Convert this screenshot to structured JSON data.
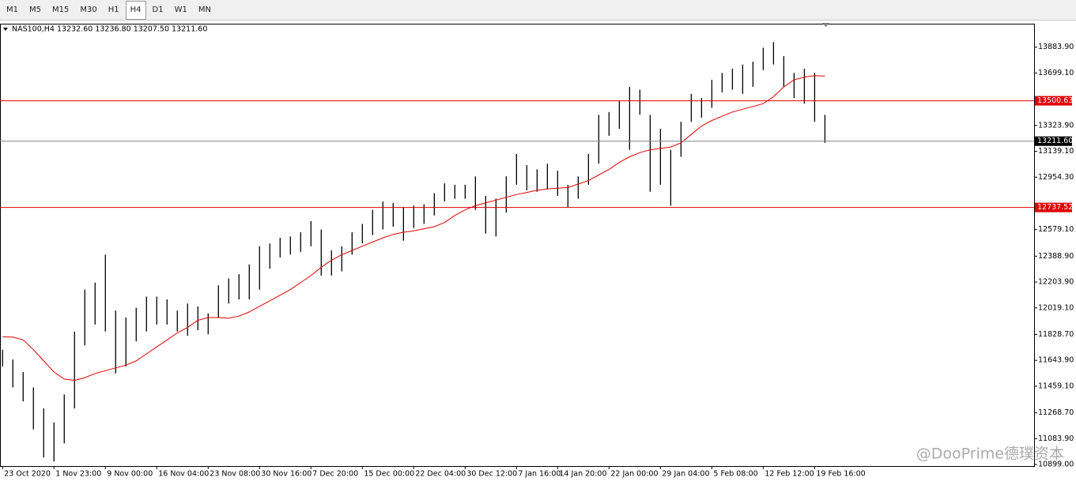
{
  "toolbar": {
    "timeframes": [
      "M1",
      "M5",
      "M15",
      "M30",
      "H1",
      "H4",
      "D1",
      "W1",
      "MN"
    ],
    "active": "H4"
  },
  "chart_data": {
    "type": "hlc-bars",
    "header": "NAS100,H4  13232.60 13236.80 13207.50 13211.60",
    "watermark": "@DooPrime德璞资本",
    "bar_color": "#000000",
    "x": [
      0,
      1,
      2,
      3,
      4,
      5,
      6,
      7,
      8,
      9,
      10,
      11,
      12,
      13,
      14,
      15,
      16,
      17,
      18,
      19,
      20,
      21,
      22,
      23,
      24,
      25,
      26,
      27,
      28,
      29,
      30,
      31,
      32,
      33,
      34,
      35,
      36,
      37,
      38,
      39,
      40,
      41,
      42,
      43,
      44,
      45,
      46,
      47,
      48,
      49,
      50,
      51,
      52,
      53,
      54,
      55,
      56,
      57,
      58,
      59,
      60,
      61,
      62,
      63,
      64,
      65,
      66,
      67,
      68,
      69,
      70,
      71,
      72,
      73,
      74,
      75,
      76,
      77,
      78,
      79,
      80
    ],
    "series": [
      {
        "name": "High",
        "values": [
          11720,
          11650,
          11560,
          11450,
          11300,
          11200,
          11400,
          11850,
          12150,
          12200,
          12400,
          12000,
          11950,
          12020,
          12100,
          12100,
          12080,
          12000,
          12050,
          12030,
          11980,
          12180,
          12230,
          12260,
          12330,
          12460,
          12480,
          12520,
          12530,
          12560,
          12640,
          12580,
          12430,
          12460,
          12560,
          12620,
          12720,
          12780,
          12770,
          12740,
          12750,
          12760,
          12840,
          12910,
          12900,
          12900,
          12960,
          12820,
          12800,
          12960,
          13120,
          13040,
          13010,
          13050,
          13000,
          12900,
          12960,
          13120,
          13400,
          13420,
          13500,
          13600,
          13580,
          13400,
          13300,
          13150,
          13350,
          13550,
          13520,
          13650,
          13700,
          13730,
          13760,
          13780,
          13880,
          13920,
          13820,
          13700,
          13730,
          13700,
          13400
        ]
      },
      {
        "name": "Low",
        "values": [
          11600,
          11450,
          11350,
          11150,
          10950,
          10920,
          11050,
          11300,
          11750,
          11900,
          11850,
          11550,
          11600,
          11780,
          11850,
          11900,
          11900,
          11850,
          11820,
          11860,
          11830,
          11950,
          12050,
          12080,
          12080,
          12150,
          12300,
          12380,
          12400,
          12420,
          12460,
          12250,
          12250,
          12280,
          12400,
          12480,
          12540,
          12580,
          12600,
          12500,
          12590,
          12620,
          12680,
          12780,
          12800,
          12800,
          12720,
          12550,
          12530,
          12700,
          12900,
          12860,
          12850,
          12870,
          12820,
          12740,
          12800,
          12900,
          13050,
          13250,
          13300,
          13150,
          13400,
          12850,
          12900,
          12750,
          13100,
          13350,
          13380,
          13450,
          13560,
          13580,
          13550,
          13600,
          13720,
          13760,
          13600,
          13520,
          13480,
          13350,
          13200
        ]
      },
      {
        "name": "MA",
        "color": "#e00000",
        "values": [
          11812,
          11810,
          11790,
          11720,
          11640,
          11560,
          11510,
          11500,
          11520,
          11550,
          11570,
          11590,
          11610,
          11640,
          11690,
          11740,
          11790,
          11840,
          11880,
          11930,
          11950,
          11950,
          11945,
          11960,
          11990,
          12030,
          12070,
          12110,
          12150,
          12200,
          12250,
          12310,
          12360,
          12400,
          12430,
          12460,
          12490,
          12520,
          12545,
          12560,
          12570,
          12585,
          12600,
          12630,
          12680,
          12720,
          12750,
          12770,
          12790,
          12810,
          12830,
          12845,
          12860,
          12870,
          12875,
          12880,
          12905,
          12930,
          12970,
          13010,
          13060,
          13100,
          13130,
          13150,
          13160,
          13170,
          13200,
          13260,
          13320,
          13360,
          13390,
          13420,
          13440,
          13460,
          13480,
          13530,
          13600,
          13650,
          13670,
          13680,
          13677
        ]
      }
    ],
    "xlim": [
      -0.25,
      100.35
    ],
    "xticks": [
      {
        "value": 0,
        "label": "23 Oct 2020"
      },
      {
        "value": 5,
        "label": "1 Nov 23:00"
      },
      {
        "value": 10,
        "label": "9 Nov 00:00"
      },
      {
        "value": 15,
        "label": "16 Nov 04:00"
      },
      {
        "value": 20,
        "label": "23 Nov 08:00"
      },
      {
        "value": 25,
        "label": "30 Nov 16:00"
      },
      {
        "value": 30,
        "label": "7 Dec 20:00"
      },
      {
        "value": 35,
        "label": "15 Dec 00:00"
      },
      {
        "value": 40,
        "label": "22 Dec 04:00"
      },
      {
        "value": 45,
        "label": "30 Dec 12:00"
      },
      {
        "value": 50,
        "label": "7 Jan 16:00"
      },
      {
        "value": 54,
        "label": "14 Jan 20:00"
      },
      {
        "value": 59,
        "label": "22 Jan 00:00"
      },
      {
        "value": 64,
        "label": "29 Jan 04:00"
      },
      {
        "value": 69,
        "label": "5 Feb 08:00"
      },
      {
        "value": 74,
        "label": "12 Feb 12:00"
      },
      {
        "value": 79,
        "label": "19 Feb 16:00"
      }
    ],
    "ylim": [
      10887.8,
      14051.9
    ],
    "yticks": [
      {
        "value": 13883.9,
        "label": "13883.90"
      },
      {
        "value": 13699.1,
        "label": "13699.10"
      },
      {
        "value": 13323.9,
        "label": "13323.90"
      },
      {
        "value": 13139.1,
        "label": "13139.10"
      },
      {
        "value": 12954.3,
        "label": "12954.30"
      },
      {
        "value": 12579.1,
        "label": "12579.10"
      },
      {
        "value": 12388.9,
        "label": "12388.90"
      },
      {
        "value": 12203.9,
        "label": "12203.90"
      },
      {
        "value": 12019.1,
        "label": "12019.10"
      },
      {
        "value": 11828.7,
        "label": "11828.70"
      },
      {
        "value": 11643.9,
        "label": "11643.90"
      },
      {
        "value": 11459.1,
        "label": "11459.10"
      },
      {
        "value": 11268.7,
        "label": "11268.70"
      },
      {
        "value": 11083.9,
        "label": "11083.90"
      },
      {
        "value": 10899,
        "label": "10899.00"
      }
    ],
    "levels": [
      13500.63,
      12737.52,
      {
        "value": 13211.6,
        "label": "13211.60"
      }
    ],
    "level_colors": [
      "#e00000",
      "#e00000",
      "#808080"
    ],
    "level_box_colors": [
      "#e00000",
      "#e00000",
      "#000000"
    ]
  }
}
